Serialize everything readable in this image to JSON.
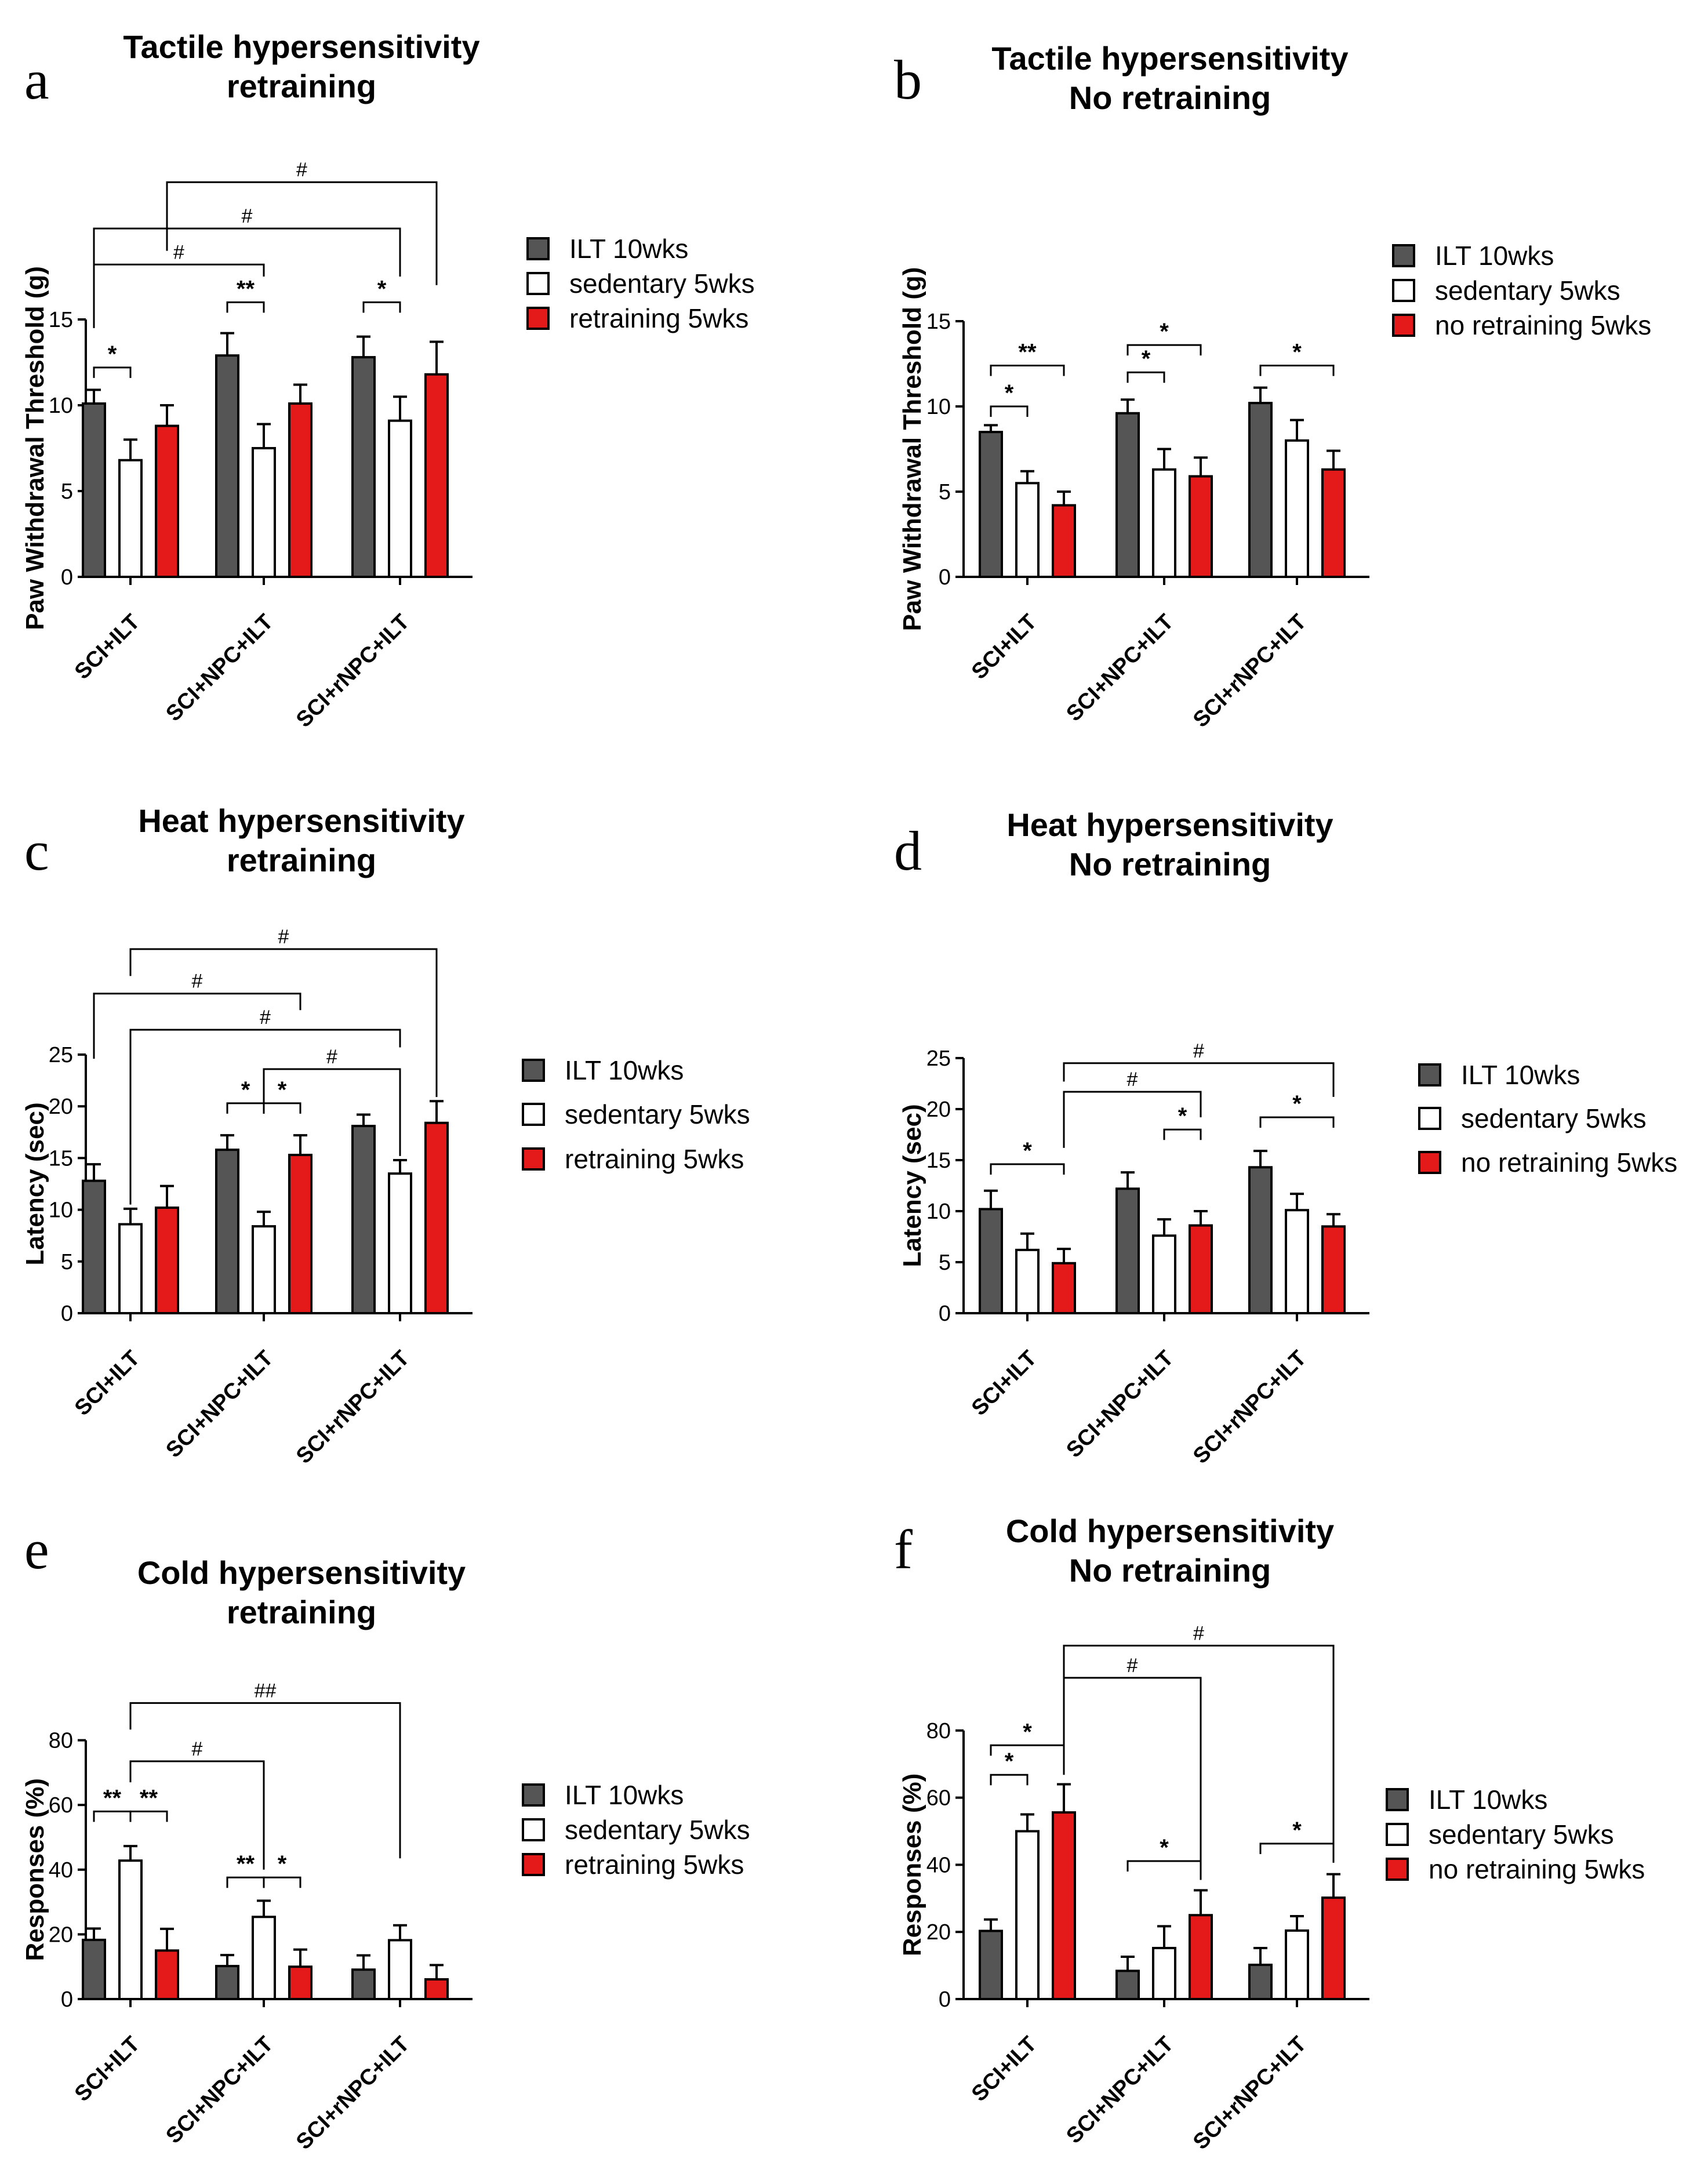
{
  "colors": {
    "ilt": "#555555",
    "sedentary": "#ffffff",
    "red": "#e41a1a",
    "stroke": "#000000"
  },
  "chart_data": [
    {
      "id": "a",
      "letter": "a",
      "type": "bar",
      "title": [
        "Tactile hypersensitivity",
        "retraining"
      ],
      "ylabel": "Paw Withdrawal Threshold (g)",
      "ylim": [
        0,
        15
      ],
      "yticks": [
        0,
        5,
        10,
        15
      ],
      "categories": [
        "SCI+ILT",
        "SCI+NPC+ILT",
        "SCI+rNPC+ILT"
      ],
      "series": [
        {
          "name": "ILT 10wks",
          "values": [
            10.1,
            12.9,
            12.8
          ],
          "err": [
            0.8,
            1.3,
            1.2
          ]
        },
        {
          "name": "sedentary 5wks",
          "values": [
            6.8,
            7.5,
            9.1
          ],
          "err": [
            1.2,
            1.4,
            1.4
          ]
        },
        {
          "name": "retraining 5wks",
          "values": [
            8.8,
            10.1,
            11.8
          ],
          "err": [
            1.2,
            1.1,
            1.9
          ]
        }
      ],
      "annotations": [
        {
          "text": "*",
          "kind": "bracket",
          "g1": 0,
          "s1": 0,
          "g2": 0,
          "s2": 1,
          "level": 12.2
        },
        {
          "text": "**",
          "kind": "bracket",
          "g1": 1,
          "s1": 0,
          "g2": 1,
          "s2": 1,
          "level": 16.0
        },
        {
          "text": "*",
          "kind": "bracket",
          "g1": 2,
          "s1": 0,
          "g2": 2,
          "s2": 1,
          "level": 16.0
        },
        {
          "text": "#",
          "kind": "long",
          "g1": 0,
          "s1": 0,
          "g2": 1,
          "s2": 1,
          "level": 18.2,
          "d1": 14.5,
          "d2": 17.5
        },
        {
          "text": "#",
          "kind": "long",
          "g1": 0,
          "s1": 0,
          "g2": 2,
          "s2": 1,
          "level": 20.3,
          "d1": 14.5,
          "d2": 17.5
        },
        {
          "text": "#",
          "kind": "long",
          "g1": 0,
          "s1": 2,
          "g2": 2,
          "s2": 2,
          "level": 23.0,
          "d1": 19.0,
          "d2": 17.0
        }
      ]
    },
    {
      "id": "b",
      "letter": "b",
      "type": "bar",
      "title": [
        "Tactile hypersensitivity",
        "No retraining"
      ],
      "ylabel": "Paw Withdrawal Threshold (g)",
      "ylim": [
        0,
        15
      ],
      "yticks": [
        0,
        5,
        10,
        15
      ],
      "categories": [
        "SCI+ILT",
        "SCI+NPC+ILT",
        "SCI+rNPC+ILT"
      ],
      "series": [
        {
          "name": "ILT 10wks",
          "values": [
            8.5,
            9.6,
            10.2
          ],
          "err": [
            0.4,
            0.8,
            0.9
          ]
        },
        {
          "name": "sedentary 5wks",
          "values": [
            5.5,
            6.3,
            8.0
          ],
          "err": [
            0.7,
            1.2,
            1.2
          ]
        },
        {
          "name": "no retraining 5wks",
          "values": [
            4.2,
            5.9,
            6.3
          ],
          "err": [
            0.8,
            1.1,
            1.1
          ]
        }
      ],
      "annotations": [
        {
          "text": "*",
          "kind": "bracket",
          "g1": 0,
          "s1": 0,
          "g2": 0,
          "s2": 1,
          "level": 10.0
        },
        {
          "text": "**",
          "kind": "bracket",
          "g1": 0,
          "s1": 0,
          "g2": 0,
          "s2": 2,
          "level": 12.4
        },
        {
          "text": "*",
          "kind": "bracket",
          "g1": 1,
          "s1": 0,
          "g2": 1,
          "s2": 1,
          "level": 12.0
        },
        {
          "text": "*",
          "kind": "bracket",
          "g1": 1,
          "s1": 0,
          "g2": 1,
          "s2": 2,
          "level": 13.6
        },
        {
          "text": "*",
          "kind": "bracket",
          "g1": 2,
          "s1": 0,
          "g2": 2,
          "s2": 2,
          "level": 12.4
        }
      ]
    },
    {
      "id": "c",
      "letter": "c",
      "type": "bar",
      "title": [
        "Heat hypersensitivity",
        "retraining"
      ],
      "ylabel": "Latency (sec)",
      "ylim": [
        0,
        25
      ],
      "yticks": [
        0,
        5,
        10,
        15,
        20,
        25
      ],
      "categories": [
        "SCI+ILT",
        "SCI+NPC+ILT",
        "SCI+rNPC+ILT"
      ],
      "series": [
        {
          "name": "ILT 10wks",
          "values": [
            12.8,
            15.8,
            18.1
          ],
          "err": [
            1.6,
            1.4,
            1.1
          ]
        },
        {
          "name": "sedentary 5wks",
          "values": [
            8.6,
            8.4,
            13.5
          ],
          "err": [
            1.5,
            1.4,
            1.3
          ]
        },
        {
          "name": "retraining 5wks",
          "values": [
            10.2,
            15.3,
            18.4
          ],
          "err": [
            2.1,
            1.9,
            2.1
          ]
        }
      ],
      "annotations": [
        {
          "text": "*",
          "kind": "bracket",
          "g1": 1,
          "s1": 0,
          "g2": 1,
          "s2": 1,
          "level": 20.3
        },
        {
          "text": "*",
          "kind": "bracket",
          "g1": 1,
          "s1": 1,
          "g2": 1,
          "s2": 2,
          "level": 20.3
        },
        {
          "text": "#",
          "kind": "long",
          "g1": 1,
          "s1": 1,
          "g2": 2,
          "s2": 1,
          "level": 23.6,
          "d1": 20.3,
          "d2": 15.2
        },
        {
          "text": "#",
          "kind": "long",
          "g1": 0,
          "s1": 1,
          "g2": 2,
          "s2": 1,
          "level": 27.4,
          "d1": 10.5,
          "d2": 25.7
        },
        {
          "text": "#",
          "kind": "long",
          "g1": 0,
          "s1": 0,
          "g2": 1,
          "s2": 2,
          "level": 30.9,
          "d1": 24.6,
          "d2": 29.3
        },
        {
          "text": "#",
          "kind": "long",
          "g1": 0,
          "s1": 1,
          "g2": 2,
          "s2": 2,
          "level": 35.2,
          "d1": 32.6,
          "d2": 20.9
        }
      ]
    },
    {
      "id": "d",
      "letter": "d",
      "type": "bar",
      "title": [
        "Heat hypersensitivity",
        "No retraining"
      ],
      "ylabel": "Latency (sec)",
      "ylim": [
        0,
        25
      ],
      "yticks": [
        0,
        5,
        10,
        15,
        20,
        25
      ],
      "categories": [
        "SCI+ILT",
        "SCI+NPC+ILT",
        "SCI+rNPC+ILT"
      ],
      "series": [
        {
          "name": "ILT 10wks",
          "values": [
            10.2,
            12.2,
            14.3
          ],
          "err": [
            1.8,
            1.6,
            1.6
          ]
        },
        {
          "name": "sedentary 5wks",
          "values": [
            6.2,
            7.6,
            10.1
          ],
          "err": [
            1.6,
            1.6,
            1.6
          ]
        },
        {
          "name": "no retraining 5wks",
          "values": [
            4.9,
            8.6,
            8.5
          ],
          "err": [
            1.4,
            1.4,
            1.2
          ]
        }
      ],
      "annotations": [
        {
          "text": "*",
          "kind": "bracket",
          "g1": 0,
          "s1": 0,
          "g2": 0,
          "s2": 2,
          "level": 14.6
        },
        {
          "text": "*",
          "kind": "bracket",
          "g1": 1,
          "s1": 1,
          "g2": 1,
          "s2": 2,
          "level": 18.0
        },
        {
          "text": "*",
          "kind": "bracket",
          "g1": 2,
          "s1": 0,
          "g2": 2,
          "s2": 2,
          "level": 19.2
        },
        {
          "text": "#",
          "kind": "long",
          "g1": 0,
          "s1": 2,
          "g2": 1,
          "s2": 2,
          "level": 21.7,
          "d1": 16.2,
          "d2": 19.2
        },
        {
          "text": "#",
          "kind": "long",
          "g1": 0,
          "s1": 2,
          "g2": 2,
          "s2": 2,
          "level": 24.5,
          "d1": 22.7,
          "d2": 21.2
        }
      ]
    },
    {
      "id": "e",
      "letter": "e",
      "type": "bar",
      "title": [
        "Cold hypersensitivity",
        "retraining"
      ],
      "ylabel": "Responses (%)",
      "ylim": [
        0,
        80
      ],
      "yticks": [
        0,
        20,
        40,
        60,
        80
      ],
      "categories": [
        "SCI+ILT",
        "SCI+NPC+ILT",
        "SCI+rNPC+ILT"
      ],
      "series": [
        {
          "name": "ILT 10wks",
          "values": [
            18.3,
            10.2,
            9.1
          ],
          "err": [
            3.5,
            3.4,
            4.4
          ]
        },
        {
          "name": "sedentary 5wks",
          "values": [
            42.8,
            25.4,
            18.2
          ],
          "err": [
            4.5,
            5.0,
            4.6
          ]
        },
        {
          "name": "retraining 5wks",
          "values": [
            15.0,
            10.0,
            6.1
          ],
          "err": [
            6.7,
            5.3,
            4.4
          ]
        }
      ],
      "annotations": [
        {
          "text": "**",
          "kind": "bracket",
          "g1": 0,
          "s1": 0,
          "g2": 0,
          "s2": 1,
          "level": 58.0
        },
        {
          "text": "**",
          "kind": "bracket",
          "g1": 0,
          "s1": 1,
          "g2": 0,
          "s2": 2,
          "level": 58.0
        },
        {
          "text": "**",
          "kind": "bracket",
          "g1": 1,
          "s1": 0,
          "g2": 1,
          "s2": 1,
          "level": 37.6
        },
        {
          "text": "*",
          "kind": "bracket",
          "g1": 1,
          "s1": 1,
          "g2": 1,
          "s2": 2,
          "level": 37.6
        },
        {
          "text": "#",
          "kind": "long",
          "g1": 0,
          "s1": 1,
          "g2": 1,
          "s2": 1,
          "level": 73.5,
          "d1": 67.0,
          "d2": 40.0
        },
        {
          "text": "##",
          "kind": "long",
          "g1": 0,
          "s1": 1,
          "g2": 2,
          "s2": 1,
          "level": 91.5,
          "d1": 83.3,
          "d2": 43.5
        }
      ]
    },
    {
      "id": "f",
      "letter": "f",
      "type": "bar",
      "title": [
        "Cold hypersensitivity",
        "No retraining"
      ],
      "ylabel": "Responses (%)",
      "ylim": [
        0,
        80
      ],
      "yticks": [
        0,
        20,
        40,
        60,
        80
      ],
      "categories": [
        "SCI+ILT",
        "SCI+NPC+ILT",
        "SCI+rNPC+ILT"
      ],
      "series": [
        {
          "name": "ILT 10wks",
          "values": [
            20.3,
            8.4,
            10.2
          ],
          "err": [
            3.4,
            4.2,
            5.0
          ]
        },
        {
          "name": "sedentary 5wks",
          "values": [
            50.0,
            15.2,
            20.4
          ],
          "err": [
            5.0,
            6.5,
            4.3
          ]
        },
        {
          "name": "no retraining 5wks",
          "values": [
            55.6,
            25.0,
            30.2
          ],
          "err": [
            8.4,
            7.4,
            7.0
          ]
        }
      ],
      "annotations": [
        {
          "text": "*",
          "kind": "bracket",
          "g1": 0,
          "s1": 0,
          "g2": 0,
          "s2": 1,
          "level": 66.8
        },
        {
          "text": "*",
          "kind": "bracket",
          "g1": 0,
          "s1": 0,
          "g2": 0,
          "s2": 2,
          "level": 75.6
        },
        {
          "text": "*",
          "kind": "bracket",
          "g1": 1,
          "s1": 0,
          "g2": 1,
          "s2": 2,
          "level": 41.1
        },
        {
          "text": "*",
          "kind": "bracket",
          "g1": 2,
          "s1": 0,
          "g2": 2,
          "s2": 2,
          "level": 46.3
        },
        {
          "text": "#",
          "kind": "long",
          "g1": 0,
          "s1": 2,
          "g2": 1,
          "s2": 2,
          "level": 95.7,
          "d1": 66.8,
          "d2": 35.5
        },
        {
          "text": "#",
          "kind": "long",
          "g1": 0,
          "s1": 2,
          "g2": 2,
          "s2": 2,
          "level": 105.3,
          "d1": 76.5,
          "d2": 40.6
        }
      ]
    }
  ]
}
